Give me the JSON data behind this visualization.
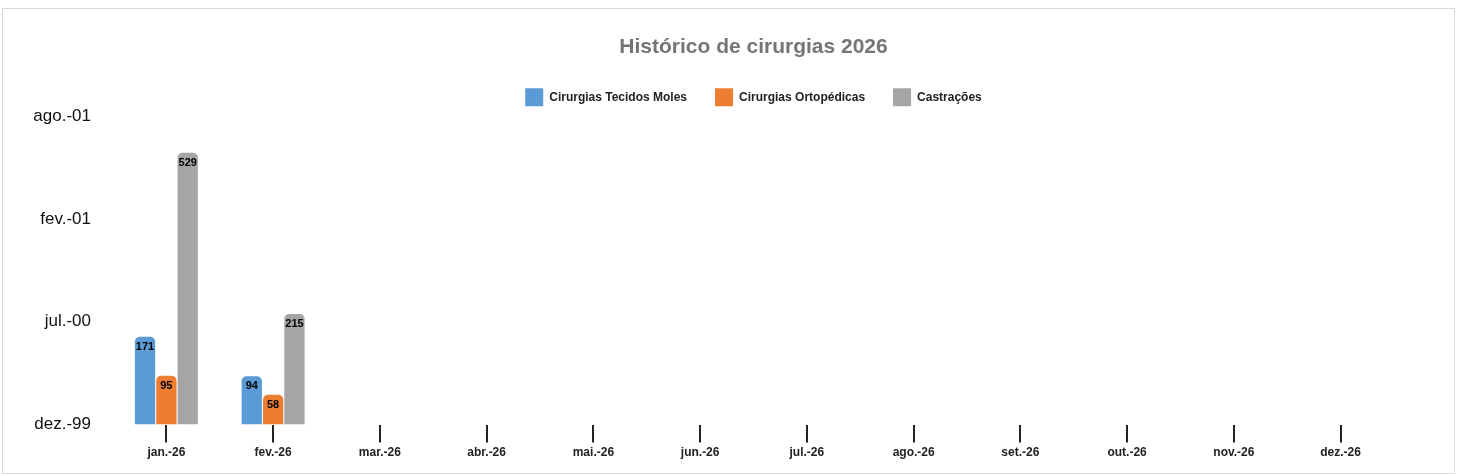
{
  "chart_data": {
    "type": "bar",
    "title": "Histórico de cirurgias 2026",
    "categories": [
      "jan.-26",
      "fev.-26",
      "mar.-26",
      "abr.-26",
      "mai.-26",
      "jun.-26",
      "jul.-26",
      "ago.-26",
      "set.-26",
      "out.-26",
      "nov.-26",
      "dez.-26"
    ],
    "series": [
      {
        "name": "Cirurgias Tecidos Moles",
        "color": "#5b9bd5",
        "values": [
          171,
          94,
          null,
          null,
          null,
          null,
          null,
          null,
          null,
          null,
          null,
          null
        ]
      },
      {
        "name": "Cirurgias Ortopédicas",
        "color": "#ed7d31",
        "values": [
          95,
          58,
          null,
          null,
          null,
          null,
          null,
          null,
          null,
          null,
          null,
          null
        ]
      },
      {
        "name": "Castrações",
        "color": "#a5a5a5",
        "values": [
          529,
          215,
          null,
          null,
          null,
          null,
          null,
          null,
          null,
          null,
          null,
          null
        ]
      }
    ],
    "annotations": [
      "ago.-01",
      "fev.-01",
      "jul.-00",
      "dez.-99"
    ],
    "grid": false,
    "legend": "top",
    "data_labels": true
  }
}
